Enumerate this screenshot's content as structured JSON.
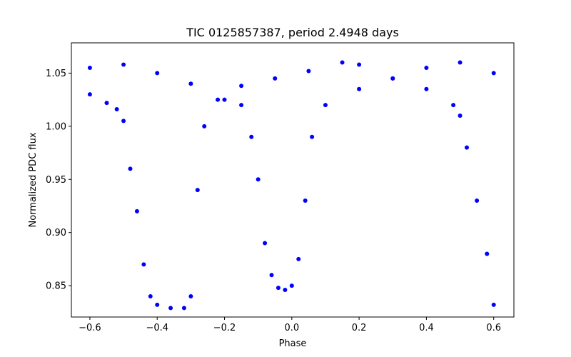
{
  "chart_data": {
    "type": "scatter",
    "title": "TIC 0125857387, period 2.4948 days",
    "xlabel": "Phase",
    "ylabel": "Normalized PDC flux",
    "xlim": [
      -0.655,
      0.66
    ],
    "ylim": [
      0.8205,
      1.0785
    ],
    "xticks": [
      -0.6,
      -0.4,
      -0.2,
      0.0,
      0.2,
      0.4,
      0.6
    ],
    "xtick_labels": [
      "−0.6",
      "−0.4",
      "−0.2",
      "0.0",
      "0.2",
      "0.4",
      "0.6"
    ],
    "yticks": [
      0.85,
      0.9,
      0.95,
      1.0,
      1.05
    ],
    "ytick_labels": [
      "0.85",
      "0.90",
      "0.95",
      "1.00",
      "1.05"
    ],
    "grid": false,
    "marker_color": "#0000ff",
    "series": [
      {
        "points": [
          [
            -0.6,
            1.03
          ],
          [
            -0.55,
            1.022
          ],
          [
            -0.52,
            1.016
          ],
          [
            -0.5,
            1.005
          ],
          [
            -0.48,
            0.96
          ],
          [
            -0.46,
            0.92
          ],
          [
            -0.44,
            0.87
          ],
          [
            -0.42,
            0.84
          ],
          [
            -0.4,
            0.832
          ],
          [
            -0.36,
            0.829
          ],
          [
            -0.32,
            0.829
          ],
          [
            -0.3,
            0.84
          ],
          [
            -0.28,
            0.94
          ],
          [
            -0.26,
            1.0
          ],
          [
            -0.22,
            1.025
          ],
          [
            -0.15,
            1.038
          ],
          [
            -0.05,
            1.045
          ],
          [
            0.05,
            1.052
          ],
          [
            0.15,
            1.06
          ],
          [
            0.2,
            1.058
          ],
          [
            0.3,
            1.045
          ],
          [
            0.4,
            1.035
          ],
          [
            0.48,
            1.02
          ],
          [
            0.5,
            1.01
          ],
          [
            0.52,
            0.98
          ],
          [
            0.55,
            0.93
          ],
          [
            0.58,
            0.88
          ],
          [
            0.6,
            0.832
          ]
        ]
      },
      {
        "points": [
          [
            -0.6,
            1.055
          ],
          [
            -0.5,
            1.058
          ],
          [
            -0.4,
            1.05
          ],
          [
            -0.3,
            1.04
          ],
          [
            -0.2,
            1.025
          ],
          [
            -0.15,
            1.02
          ],
          [
            -0.12,
            0.99
          ],
          [
            -0.1,
            0.95
          ],
          [
            -0.08,
            0.89
          ],
          [
            -0.06,
            0.86
          ],
          [
            -0.04,
            0.848
          ],
          [
            -0.02,
            0.846
          ],
          [
            0.0,
            0.85
          ],
          [
            0.02,
            0.875
          ],
          [
            0.04,
            0.93
          ],
          [
            0.06,
            0.99
          ],
          [
            0.1,
            1.02
          ],
          [
            0.2,
            1.035
          ],
          [
            0.3,
            1.045
          ],
          [
            0.4,
            1.055
          ],
          [
            0.5,
            1.06
          ],
          [
            0.6,
            1.05
          ]
        ]
      }
    ]
  }
}
